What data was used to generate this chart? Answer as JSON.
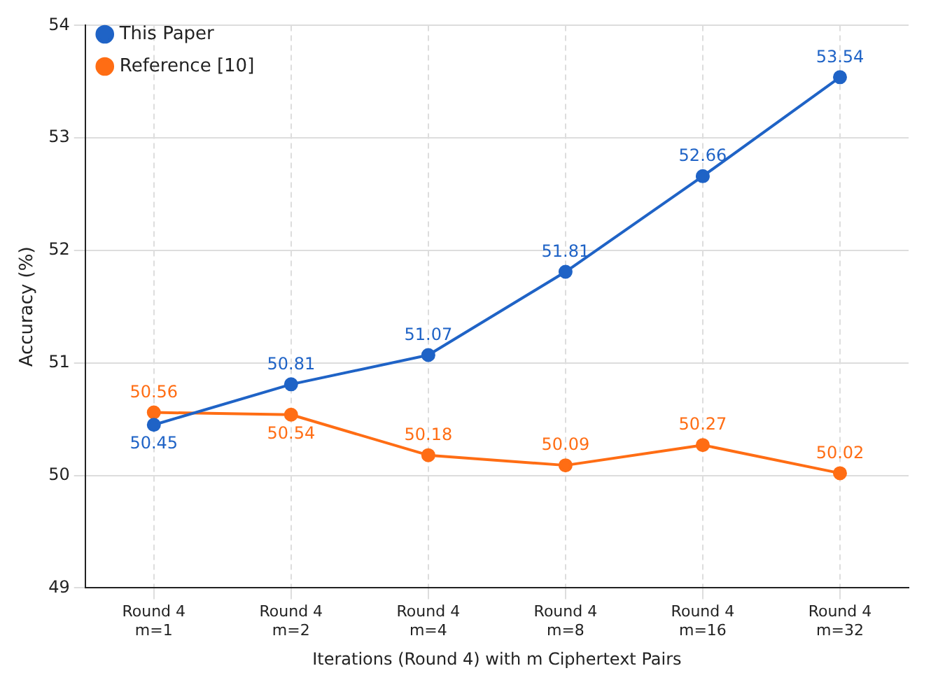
{
  "chart_data": {
    "type": "line",
    "xlabel": "Iterations (Round 4) with m Ciphertext Pairs",
    "ylabel": "Accuracy (%)",
    "categories": [
      "Round 4\nm=1",
      "Round 4\nm=2",
      "Round 4\nm=4",
      "Round 4\nm=8",
      "Round 4\nm=16",
      "Round 4\nm=32"
    ],
    "series": [
      {
        "name": "This Paper",
        "color": "#1f63c6",
        "values": [
          50.45,
          50.81,
          51.07,
          51.81,
          52.66,
          53.54
        ]
      },
      {
        "name": "Reference [10]",
        "color": "#ff6d14",
        "values": [
          50.56,
          50.54,
          50.18,
          50.09,
          50.27,
          50.02
        ]
      }
    ],
    "ylim": [
      49,
      54
    ],
    "yticks": [
      49,
      50,
      51,
      52,
      53,
      54
    ],
    "grid": true,
    "legend": "top left",
    "marker": "circle",
    "line_style": "solid",
    "data_labels": true
  }
}
